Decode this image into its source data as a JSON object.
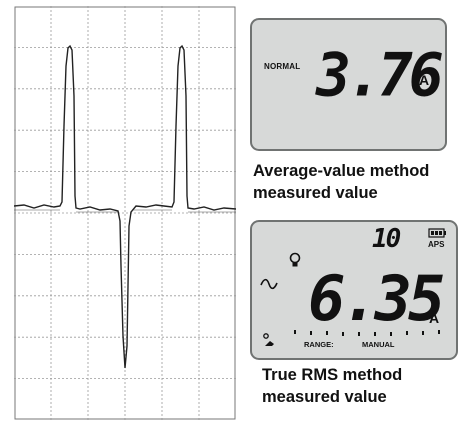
{
  "top_meter": {
    "mode": "NORMAL",
    "reading": "3.76",
    "unit": "A",
    "caption_line1": "Average-value method",
    "caption_line2": "measured value"
  },
  "bottom_meter": {
    "range_number": "10",
    "aps": "APS",
    "reading": "6.35",
    "unit": "A",
    "range_label": "RANGE:",
    "manual_label": "MANUAL",
    "caption_line1": "True RMS method",
    "caption_line2": "measured value",
    "icons": [
      "bulb-icon",
      "ac-wave-icon",
      "battery-icon",
      "probe-icon"
    ]
  },
  "colors": {
    "lcd_background": "#d7d9d8",
    "lcd_border": "#707372",
    "grid": "#9a9a9a",
    "trace": "#222222"
  }
}
